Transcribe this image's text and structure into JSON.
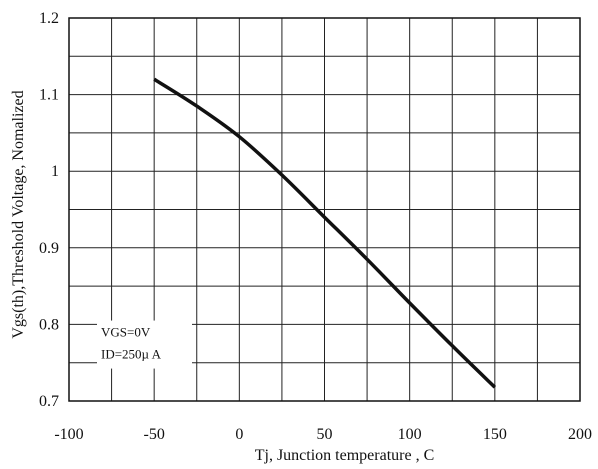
{
  "chart_data": {
    "type": "line",
    "title": "",
    "xlabel": "Tj, Junction temperature , C",
    "ylabel": "Vgs(th),Threshold Voltage, Nomalized",
    "xlim": [
      -100,
      200
    ],
    "ylim": [
      0.7,
      1.2
    ],
    "x_ticks": [
      -100,
      -75,
      -50,
      -25,
      0,
      25,
      50,
      75,
      100,
      125,
      150,
      175,
      200
    ],
    "y_ticks": [
      0.7,
      0.75,
      0.8,
      0.85,
      0.9,
      0.95,
      1.0,
      1.05,
      1.1,
      1.15,
      1.2
    ],
    "x_tick_labels": [
      {
        "value": -100,
        "label": "-100"
      },
      {
        "value": -50,
        "label": "-50"
      },
      {
        "value": 0,
        "label": "0"
      },
      {
        "value": 50,
        "label": "50"
      },
      {
        "value": 100,
        "label": "100"
      },
      {
        "value": 150,
        "label": "150"
      },
      {
        "value": 200,
        "label": "200"
      }
    ],
    "y_tick_labels": [
      {
        "value": 0.7,
        "label": "0.7"
      },
      {
        "value": 0.8,
        "label": "0.8"
      },
      {
        "value": 0.9,
        "label": "0.9"
      },
      {
        "value": 1.0,
        "label": "1"
      },
      {
        "value": 1.1,
        "label": "1.1"
      },
      {
        "value": 1.2,
        "label": "1.2"
      }
    ],
    "grid": true,
    "series": [
      {
        "x": [
          -50,
          -25,
          0,
          25,
          50,
          75,
          100,
          125,
          150
        ],
        "y": [
          1.12,
          1.085,
          1.045,
          0.995,
          0.94,
          0.885,
          0.828,
          0.772,
          0.718
        ],
        "color": "#111111"
      }
    ],
    "annotation": {
      "lines": [
        "VGS=0V",
        "ID=250µ A"
      ],
      "position": "bottom-left"
    }
  }
}
